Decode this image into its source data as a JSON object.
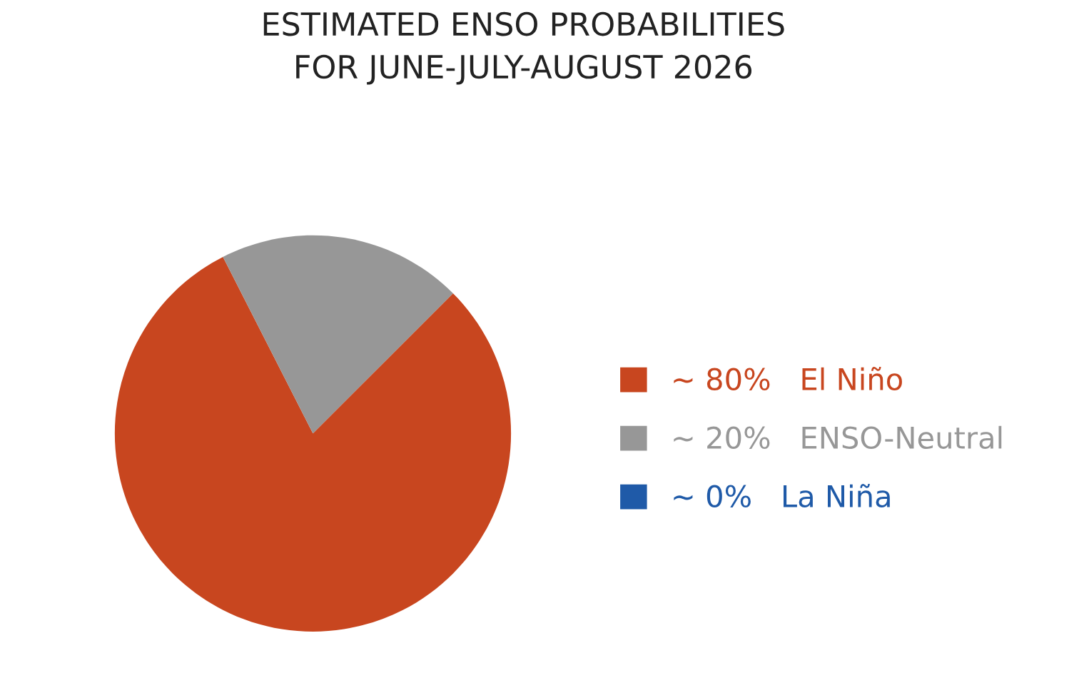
{
  "chart_data": {
    "type": "pie",
    "title": "ESTIMATED ENSO PROBABILITIES\nFOR JUNE-JULY-AUGUST 2026",
    "categories": [
      "El Niño",
      "ENSO-Neutral",
      "La Niña"
    ],
    "values": [
      80,
      20,
      0
    ],
    "value_labels": [
      "~ 80%",
      "~ 20%",
      "~ 0%"
    ],
    "colors": [
      "#c8461f",
      "#979797",
      "#1f5aa8"
    ],
    "legend": "right"
  }
}
